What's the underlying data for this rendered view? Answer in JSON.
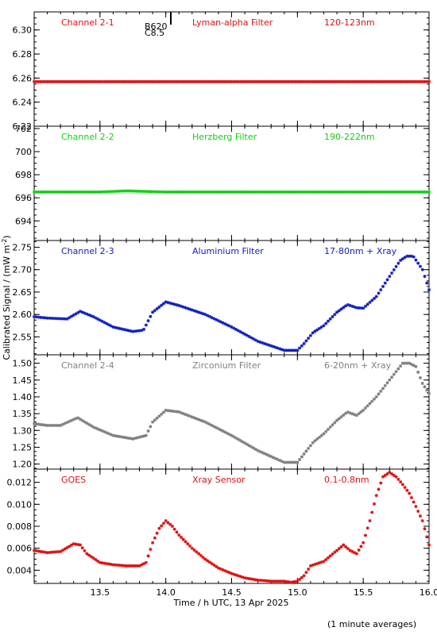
{
  "chart_data": {
    "type": "scatter",
    "xlabel": "Time / h UTC, 13 Apr 2025",
    "ylabel": "Calibrated Signal / (mW m",
    "ylabel_sup": "-2",
    "ylabel_close": ")",
    "xlim": [
      13.0,
      16.0
    ],
    "xticks": [
      "13.5",
      "14.0",
      "14.5",
      "15.0",
      "15.5",
      "16.0"
    ],
    "xtick_values": [
      13.5,
      14.0,
      14.5,
      15.0,
      15.5,
      16.0
    ],
    "footnote": "(1 minute averages)",
    "flare_marker": {
      "x": 14.02,
      "label_1": "B620",
      "label_2": "C8.5"
    },
    "panels": [
      {
        "channel": "Channel 2-1",
        "filter": "Lyman-alpha Filter",
        "band": "120-123nm",
        "color": "#e01010",
        "ylim": [
          6.22,
          6.315
        ],
        "yticks": [
          "6.30",
          "6.28",
          "6.26",
          "6.24",
          "6.22"
        ],
        "ytick_values": [
          6.3,
          6.28,
          6.26,
          6.24,
          6.22
        ],
        "series": [
          {
            "x": [
              13.0,
              13.5,
              14.0,
              14.5,
              15.0,
              15.5,
              16.0
            ],
            "y": [
              6.257,
              6.257,
              6.257,
              6.257,
              6.257,
              6.257,
              6.257
            ]
          }
        ]
      },
      {
        "channel": "Channel 2-2",
        "filter": "Herzberg Filter",
        "band": "190-222nm",
        "color": "#10d010",
        "ylim": [
          692.3,
          702.2
        ],
        "yticks": [
          "702",
          "700",
          "698",
          "696",
          "694"
        ],
        "ytick_values": [
          702,
          700,
          698,
          696,
          694
        ],
        "series": [
          {
            "x": [
              13.0,
              13.5,
              13.7,
              14.0,
              14.5,
              15.0,
              15.5,
              16.0
            ],
            "y": [
              696.5,
              696.5,
              696.6,
              696.5,
              696.5,
              696.5,
              696.5,
              696.5
            ]
          }
        ]
      },
      {
        "channel": "Channel 2-3",
        "filter": "Aluminium Filter",
        "band": "17-80nm + Xray",
        "color": "#1020c0",
        "ylim": [
          2.51,
          2.765
        ],
        "yticks": [
          "2.75",
          "2.70",
          "2.65",
          "2.60",
          "2.55"
        ],
        "ytick_values": [
          2.75,
          2.7,
          2.65,
          2.6,
          2.55
        ],
        "series": [
          {
            "x": [
              13.0,
              13.1,
              13.25,
              13.35,
              13.45,
              13.6,
              13.75,
              13.83,
              13.9,
              14.0,
              14.1,
              14.3,
              14.5,
              14.7,
              14.9,
              15.0,
              15.05,
              15.12,
              15.2,
              15.3,
              15.38,
              15.45,
              15.5,
              15.6,
              15.7,
              15.78,
              15.83,
              15.88,
              15.95,
              16.0
            ],
            "y": [
              2.595,
              2.592,
              2.59,
              2.607,
              2.595,
              2.572,
              2.562,
              2.565,
              2.605,
              2.628,
              2.62,
              2.6,
              2.572,
              2.54,
              2.52,
              2.52,
              2.535,
              2.56,
              2.575,
              2.605,
              2.622,
              2.615,
              2.614,
              2.64,
              2.685,
              2.72,
              2.73,
              2.73,
              2.7,
              2.655
            ]
          }
        ]
      },
      {
        "channel": "Channel 2-4",
        "filter": "Zirconium Filter",
        "band": "6-20nm + Xray",
        "color": "#808080",
        "ylim": [
          1.185,
          1.525
        ],
        "yticks": [
          "1.50",
          "1.45",
          "1.40",
          "1.35",
          "1.30",
          "1.25",
          "1.20"
        ],
        "ytick_values": [
          1.5,
          1.45,
          1.4,
          1.35,
          1.3,
          1.25,
          1.2
        ],
        "series": [
          {
            "x": [
              13.0,
              13.1,
              13.2,
              13.33,
              13.45,
              13.6,
              13.75,
              13.85,
              13.9,
              14.0,
              14.1,
              14.3,
              14.5,
              14.7,
              14.9,
              15.0,
              15.05,
              15.12,
              15.2,
              15.3,
              15.38,
              15.45,
              15.5,
              15.6,
              15.7,
              15.8,
              15.85,
              15.9,
              15.95,
              16.0
            ],
            "y": [
              1.32,
              1.315,
              1.315,
              1.338,
              1.31,
              1.285,
              1.275,
              1.285,
              1.325,
              1.36,
              1.355,
              1.325,
              1.285,
              1.24,
              1.205,
              1.205,
              1.23,
              1.265,
              1.29,
              1.33,
              1.355,
              1.345,
              1.36,
              1.4,
              1.45,
              1.5,
              1.5,
              1.49,
              1.44,
              1.41
            ]
          }
        ]
      },
      {
        "channel": "GOES",
        "filter": "Xray Sensor",
        "band": "0.1-0.8nm",
        "color": "#e01010",
        "ylim": [
          0.0028,
          0.0132
        ],
        "yticks": [
          "0.012",
          "0.010",
          "0.008",
          "0.006",
          "0.004"
        ],
        "ytick_values": [
          0.012,
          0.01,
          0.008,
          0.006,
          0.004
        ],
        "series": [
          {
            "x": [
              13.0,
              13.1,
              13.2,
              13.3,
              13.35,
              13.4,
              13.5,
              13.6,
              13.7,
              13.8,
              13.85,
              13.9,
              13.95,
              14.0,
              14.05,
              14.1,
              14.2,
              14.3,
              14.4,
              14.5,
              14.6,
              14.7,
              14.8,
              14.9,
              14.95,
              15.0,
              15.05,
              15.1,
              15.2,
              15.3,
              15.35,
              15.4,
              15.45,
              15.5,
              15.55,
              15.6,
              15.65,
              15.7,
              15.75,
              15.8,
              15.85,
              15.9,
              15.95,
              16.0
            ],
            "y": [
              0.0058,
              0.0056,
              0.0057,
              0.0064,
              0.0063,
              0.0055,
              0.0047,
              0.0045,
              0.0044,
              0.0044,
              0.0047,
              0.0065,
              0.0078,
              0.0085,
              0.008,
              0.0072,
              0.006,
              0.005,
              0.0042,
              0.0037,
              0.0033,
              0.0031,
              0.003,
              0.003,
              0.0029,
              0.003,
              0.0035,
              0.0044,
              0.0048,
              0.0058,
              0.0063,
              0.0058,
              0.0055,
              0.0065,
              0.0085,
              0.0108,
              0.0125,
              0.0129,
              0.0125,
              0.0118,
              0.011,
              0.0098,
              0.0085,
              0.0063
            ]
          }
        ]
      }
    ]
  }
}
